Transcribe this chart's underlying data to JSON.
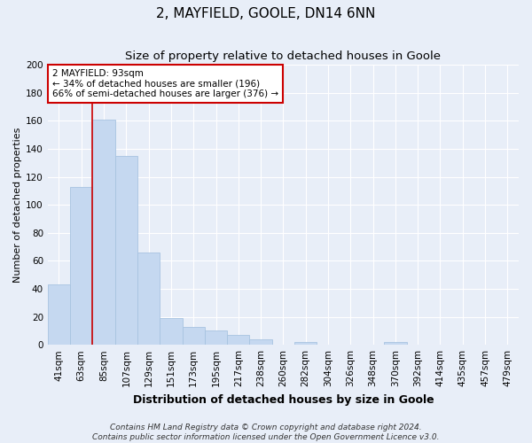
{
  "title": "2, MAYFIELD, GOOLE, DN14 6NN",
  "subtitle": "Size of property relative to detached houses in Goole",
  "xlabel": "Distribution of detached houses by size in Goole",
  "ylabel": "Number of detached properties",
  "bar_labels": [
    "41sqm",
    "63sqm",
    "85sqm",
    "107sqm",
    "129sqm",
    "151sqm",
    "173sqm",
    "195sqm",
    "217sqm",
    "238sqm",
    "260sqm",
    "282sqm",
    "304sqm",
    "326sqm",
    "348sqm",
    "370sqm",
    "392sqm",
    "414sqm",
    "435sqm",
    "457sqm",
    "479sqm"
  ],
  "bar_values": [
    43,
    113,
    161,
    135,
    66,
    19,
    13,
    10,
    7,
    4,
    0,
    2,
    0,
    0,
    0,
    2,
    0,
    0,
    0,
    0,
    0
  ],
  "bar_color": "#c5d8f0",
  "bar_edge_color": "#a8c4e0",
  "ylim": [
    0,
    200
  ],
  "yticks": [
    0,
    20,
    40,
    60,
    80,
    100,
    120,
    140,
    160,
    180,
    200
  ],
  "vline_x_index": 2,
  "vline_color": "#cc0000",
  "annotation_title": "2 MAYFIELD: 93sqm",
  "annotation_line1": "← 34% of detached houses are smaller (196)",
  "annotation_line2": "66% of semi-detached houses are larger (376) →",
  "annotation_box_facecolor": "#ffffff",
  "annotation_box_edgecolor": "#cc0000",
  "background_color": "#e8eef8",
  "plot_bg_color": "#e8eef8",
  "grid_color": "#ffffff",
  "title_fontsize": 11,
  "subtitle_fontsize": 9.5,
  "xlabel_fontsize": 9,
  "ylabel_fontsize": 8,
  "tick_fontsize": 7.5,
  "annotation_fontsize": 7.5,
  "footer_fontsize": 6.5,
  "footer_line1": "Contains HM Land Registry data © Crown copyright and database right 2024.",
  "footer_line2": "Contains public sector information licensed under the Open Government Licence v3.0."
}
